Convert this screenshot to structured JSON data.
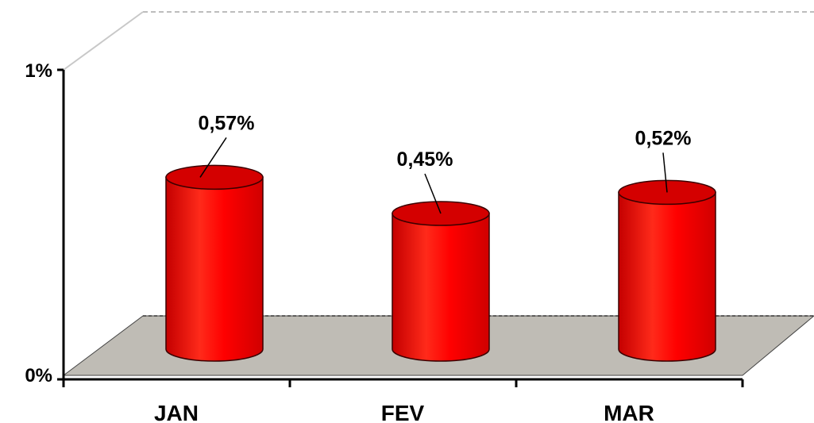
{
  "chart_data": {
    "type": "bar",
    "style": "3d-cylinder",
    "categories": [
      "JAN",
      "FEV",
      "MAR"
    ],
    "values": [
      0.57,
      0.45,
      0.52
    ],
    "data_labels": [
      "0,57%",
      "0,45%",
      "0,52%"
    ],
    "y_ticks": [
      "0%",
      "1%"
    ],
    "ylim": [
      0,
      1
    ],
    "grid": false,
    "legend": "none",
    "colors": {
      "bar": "#ff0000",
      "bar_top": "#d40000",
      "floor": "#bfbcb5",
      "axis": "#000000"
    }
  }
}
